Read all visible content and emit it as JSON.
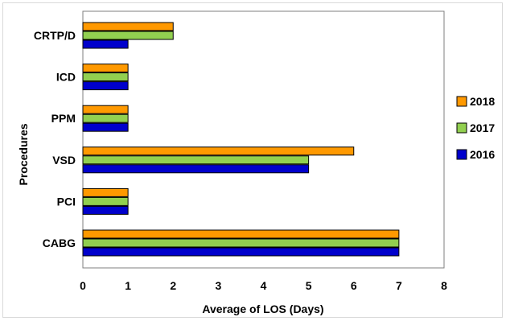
{
  "chart_data": {
    "type": "bar",
    "orientation": "horizontal",
    "categories": [
      "CRTP/D",
      "ICD",
      "PPM",
      "VSD",
      "PCI",
      "CABG"
    ],
    "series": [
      {
        "name": "2018",
        "color": "#ff9900",
        "values": [
          2,
          1,
          1,
          6,
          1,
          7
        ]
      },
      {
        "name": "2017",
        "color": "#92d050",
        "values": [
          2,
          1,
          1,
          5,
          1,
          7
        ]
      },
      {
        "name": "2016",
        "color": "#0000cc",
        "values": [
          1,
          1,
          1,
          5,
          1,
          7
        ]
      }
    ],
    "xlabel": "Average of LOS (Days)",
    "ylabel": "Procedures",
    "xlim": [
      0,
      8
    ],
    "xticks": [
      "0",
      "1",
      "2",
      "3",
      "4",
      "5",
      "6",
      "7",
      "8"
    ],
    "grid": false,
    "legend": "right"
  }
}
